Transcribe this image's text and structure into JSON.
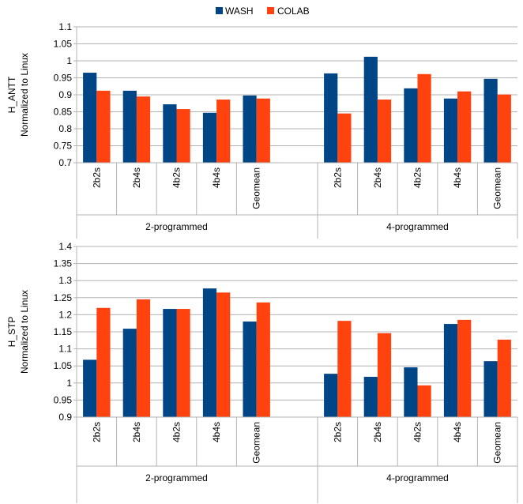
{
  "legend": [
    {
      "name": "WASH",
      "color": "#004586"
    },
    {
      "name": "COLAB",
      "color": "#FF420E"
    }
  ],
  "chart_data": [
    {
      "type": "bar",
      "ylabel": "H_ANTT",
      "ylabel2": "Normalized to Linux",
      "ylim": [
        0.7,
        1.1
      ],
      "yticks": [
        "0.7",
        "0.75",
        "0.8",
        "0.85",
        "0.9",
        "0.95",
        "1",
        "1.05",
        "1.1"
      ],
      "grid": true,
      "legend_position": "top-center",
      "groups": [
        {
          "label": "2-programmed",
          "categories": [
            "2b2s",
            "2b4s",
            "4b2s",
            "4b4s",
            "Geomean"
          ]
        },
        {
          "label": "4-programmed",
          "categories": [
            "2b2s",
            "2b4s",
            "4b2s",
            "4b4s",
            "Geomean"
          ]
        }
      ],
      "series": [
        {
          "name": "WASH",
          "values": [
            [
              0.965,
              0.912,
              0.872,
              0.847,
              0.898
            ],
            [
              0.963,
              1.012,
              0.919,
              0.889,
              0.947
            ]
          ]
        },
        {
          "name": "COLAB",
          "values": [
            [
              0.912,
              0.895,
              0.858,
              0.886,
              0.889
            ],
            [
              0.845,
              0.886,
              0.961,
              0.91,
              0.901
            ]
          ]
        }
      ]
    },
    {
      "type": "bar",
      "ylabel": "H_STP",
      "ylabel2": "Normalized to Linux",
      "ylim": [
        0.9,
        1.4
      ],
      "yticks": [
        "0.9",
        "0.95",
        "1",
        "1.05",
        "1.1",
        "1.15",
        "1.2",
        "1.25",
        "1.3",
        "1.35",
        "1.4"
      ],
      "grid": true,
      "groups": [
        {
          "label": "2-programmed",
          "categories": [
            "2b2s",
            "2b4s",
            "4b2s",
            "4b4s",
            "Geomean"
          ]
        },
        {
          "label": "4-programmed",
          "categories": [
            "2b2s",
            "2b4s",
            "4b2s",
            "4b4s",
            "Geomean"
          ]
        }
      ],
      "series": [
        {
          "name": "WASH",
          "values": [
            [
              1.068,
              1.159,
              1.217,
              1.277,
              1.18
            ],
            [
              1.027,
              1.018,
              1.046,
              1.173,
              1.064
            ]
          ]
        },
        {
          "name": "COLAB",
          "values": [
            [
              1.22,
              1.245,
              1.217,
              1.265,
              1.236
            ],
            [
              1.182,
              1.146,
              0.993,
              1.185,
              1.127
            ]
          ]
        }
      ]
    }
  ]
}
